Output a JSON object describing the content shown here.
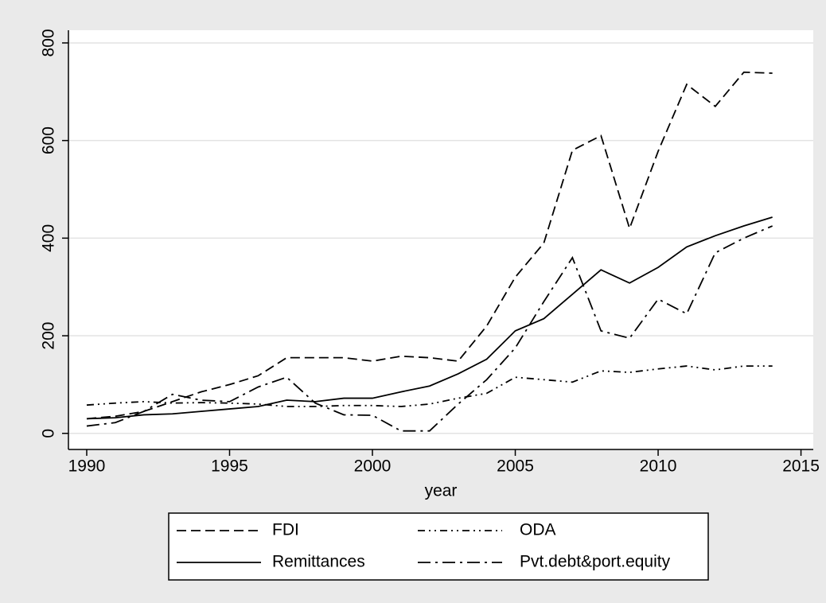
{
  "chart_data": {
    "type": "line",
    "x_label": "year",
    "x": [
      1990,
      1991,
      1992,
      1993,
      1994,
      1995,
      1996,
      1997,
      1998,
      1999,
      2000,
      2001,
      2002,
      2003,
      2004,
      2005,
      2006,
      2007,
      2008,
      2009,
      2010,
      2011,
      2012,
      2013,
      2014
    ],
    "series": [
      {
        "name": "FDI",
        "color": "#000000",
        "values": [
          30,
          35,
          45,
          65,
          85,
          100,
          118,
          155,
          155,
          155,
          148,
          158,
          155,
          148,
          220,
          320,
          390,
          580,
          610,
          420,
          578,
          715,
          670,
          740,
          738
        ]
      },
      {
        "name": "ODA",
        "color": "#000000",
        "values": [
          58,
          62,
          65,
          62,
          63,
          62,
          60,
          55,
          55,
          57,
          57,
          55,
          60,
          72,
          82,
          115,
          110,
          105,
          128,
          125,
          132,
          138,
          130,
          138,
          138
        ]
      },
      {
        "name": "Remittances",
        "color": "#000000",
        "values": [
          30,
          32,
          38,
          40,
          45,
          50,
          55,
          68,
          65,
          72,
          72,
          85,
          97,
          122,
          152,
          210,
          235,
          285,
          335,
          308,
          340,
          382,
          405,
          425,
          443
        ]
      },
      {
        "name": "Pvt.debt&port.equity",
        "color": "#000000",
        "values": [
          15,
          22,
          45,
          80,
          68,
          65,
          95,
          115,
          62,
          38,
          37,
          5,
          5,
          60,
          110,
          175,
          270,
          360,
          210,
          195,
          275,
          245,
          370,
          400,
          425
        ]
      }
    ],
    "xlim": [
      1989.36,
      2015.43
    ],
    "xticks": [
      1990,
      1995,
      2000,
      2005,
      2010,
      2015
    ],
    "ylim": [
      -33,
      826
    ],
    "yticks": [
      0,
      200,
      400,
      600,
      800
    ],
    "grid": true
  }
}
